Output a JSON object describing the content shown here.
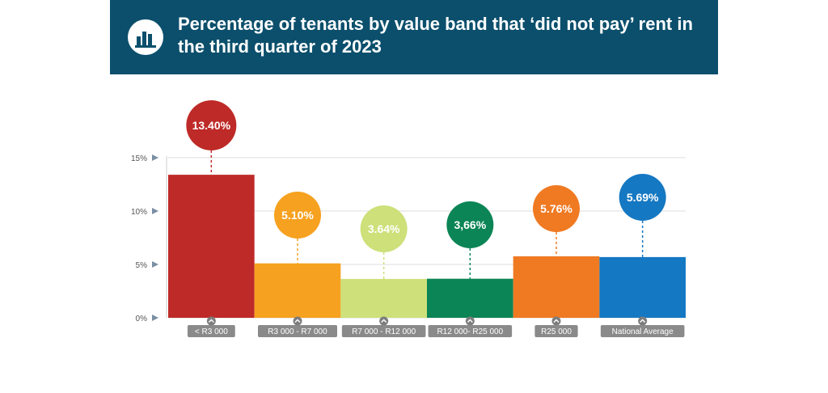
{
  "header": {
    "title": "Percentage of tenants by value band that ‘did not pay’ rent in the third quarter of 2023",
    "icon": "bar-chart-icon"
  },
  "chart_data": {
    "type": "bar",
    "title": "Percentage of tenants by value band that ‘did not pay’ rent in the third quarter of 2023",
    "categories": [
      "< R3 000",
      "R3 000 - R7 000",
      "R7 000 - R12 000",
      "R12 000- R25 000",
      "R25 000",
      "National Average"
    ],
    "values": [
      13.4,
      5.1,
      3.64,
      3.66,
      5.76,
      5.69
    ],
    "data_labels": [
      "13.40%",
      "5.10%",
      "3.64%",
      "3,66%",
      "5.76%",
      "5.69%"
    ],
    "colors": [
      "#be2a27",
      "#f6a11f",
      "#cde07a",
      "#0c8556",
      "#f07a22",
      "#1578c2"
    ],
    "label_text_colors": [
      "#ffffff",
      "#ffffff",
      "#ffffff",
      "#ffffff",
      "#ffffff",
      "#ffffff"
    ],
    "yticks": [
      0,
      5,
      10,
      15
    ],
    "ytick_labels": [
      "0%",
      "5%",
      "10%",
      "15%"
    ],
    "ylim": [
      0,
      15
    ],
    "grid": true,
    "legend": "none"
  }
}
